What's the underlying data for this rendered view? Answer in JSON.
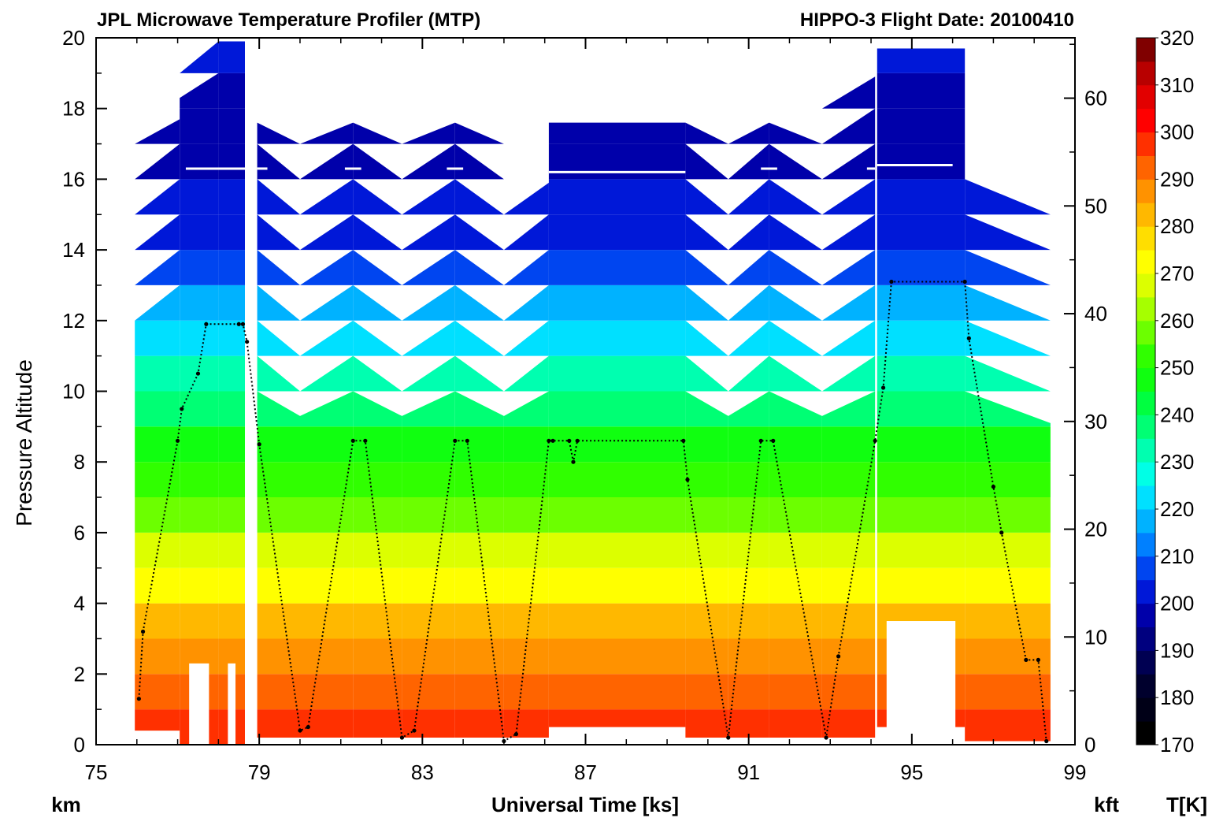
{
  "chart_data": {
    "type": "heatmap",
    "title_left": "JPL Microwave Temperature Profiler (MTP)",
    "title_right": "HIPPO-3  Flight Date: 20100410",
    "xlabel": "Universal Time [ks]",
    "ylabel": "Pressure Altitude",
    "left_unit": "km",
    "right_unit": "kft",
    "colorbar_unit": "T[K]",
    "xlim": [
      75,
      99
    ],
    "ylim_km": [
      0,
      20
    ],
    "ylim_kft": [
      0,
      65.6
    ],
    "x_ticks": [
      "75",
      "79",
      "83",
      "87",
      "91",
      "95",
      "99"
    ],
    "y_ticks_km": [
      "0",
      "2",
      "4",
      "6",
      "8",
      "10",
      "12",
      "14",
      "16",
      "18",
      "20"
    ],
    "y_ticks_kft": [
      "0",
      "10",
      "20",
      "30",
      "40",
      "50",
      "60"
    ],
    "colorbar_ticks": [
      "170",
      "180",
      "190",
      "200",
      "210",
      "220",
      "230",
      "240",
      "250",
      "260",
      "270",
      "280",
      "290",
      "300",
      "310",
      "320"
    ],
    "colormap": [
      {
        "t": 170,
        "color": "#000000"
      },
      {
        "t": 175,
        "color": "#000017"
      },
      {
        "t": 180,
        "color": "#00002d"
      },
      {
        "t": 185,
        "color": "#000052"
      },
      {
        "t": 190,
        "color": "#00007f"
      },
      {
        "t": 195,
        "color": "#0000aa"
      },
      {
        "t": 200,
        "color": "#0018d8"
      },
      {
        "t": 205,
        "color": "#0045f0"
      },
      {
        "t": 210,
        "color": "#0080ff"
      },
      {
        "t": 215,
        "color": "#00b2ff"
      },
      {
        "t": 220,
        "color": "#00e0ff"
      },
      {
        "t": 225,
        "color": "#00ffe6"
      },
      {
        "t": 230,
        "color": "#00ffb0"
      },
      {
        "t": 235,
        "color": "#00ff74"
      },
      {
        "t": 240,
        "color": "#00ff40"
      },
      {
        "t": 245,
        "color": "#10ff10"
      },
      {
        "t": 250,
        "color": "#30ff00"
      },
      {
        "t": 255,
        "color": "#6cff00"
      },
      {
        "t": 260,
        "color": "#a6ff00"
      },
      {
        "t": 265,
        "color": "#dcff00"
      },
      {
        "t": 270,
        "color": "#ffff00"
      },
      {
        "t": 275,
        "color": "#ffde00"
      },
      {
        "t": 280,
        "color": "#ffb800"
      },
      {
        "t": 285,
        "color": "#ff9200"
      },
      {
        "t": 290,
        "color": "#ff6400"
      },
      {
        "t": 295,
        "color": "#ff3000"
      },
      {
        "t": 300,
        "color": "#ff0000"
      },
      {
        "t": 305,
        "color": "#e20000"
      },
      {
        "t": 310,
        "color": "#b80000"
      },
      {
        "t": 315,
        "color": "#800000"
      },
      {
        "t": 320,
        "color": "#400000"
      }
    ],
    "curtain_segments": [
      {
        "x": [
          75.95,
          77.05
        ],
        "top_km": [
          12.0,
          17.7
        ],
        "bottom_km": 0.4
      },
      {
        "x": [
          77.05,
          78.0
        ],
        "top_km": [
          18.3,
          19.9
        ],
        "bottom_km": 0.0,
        "hole_top_km": 2.3
      },
      {
        "x": [
          78.0,
          78.65
        ],
        "top_km": [
          19.9,
          19.9
        ],
        "bottom_km": 0.0,
        "hole_top_km": 2.3
      },
      {
        "x": [
          78.95,
          80.0
        ],
        "top_km": [
          17.6,
          9.3
        ],
        "bottom_km": 0.2
      },
      {
        "x": [
          80.0,
          81.3
        ],
        "top_km": [
          9.3,
          17.6
        ],
        "bottom_km": 0.2
      },
      {
        "x": [
          81.3,
          82.5
        ],
        "top_km": [
          17.6,
          9.3
        ],
        "bottom_km": 0.2
      },
      {
        "x": [
          82.5,
          83.8
        ],
        "top_km": [
          9.3,
          17.6
        ],
        "bottom_km": 0.2
      },
      {
        "x": [
          83.8,
          85.0
        ],
        "top_km": [
          17.6,
          9.3
        ],
        "bottom_km": 0.2
      },
      {
        "x": [
          85.0,
          86.1
        ],
        "top_km": [
          9.3,
          15.9
        ],
        "bottom_km": 0.2
      },
      {
        "x": [
          86.1,
          89.45
        ],
        "top_km": [
          17.6,
          17.6
        ],
        "bottom_km": 0.5
      },
      {
        "x": [
          89.45,
          90.5
        ],
        "top_km": [
          17.6,
          9.3
        ],
        "bottom_km": 0.2
      },
      {
        "x": [
          90.5,
          91.5
        ],
        "top_km": [
          9.3,
          17.6
        ],
        "bottom_km": 0.2
      },
      {
        "x": [
          91.5,
          92.8
        ],
        "top_km": [
          17.6,
          9.3
        ],
        "bottom_km": 0.2
      },
      {
        "x": [
          92.8,
          94.1
        ],
        "top_km": [
          9.3,
          18.9
        ],
        "bottom_km": 0.2
      },
      {
        "x": [
          94.15,
          96.3
        ],
        "top_km": [
          19.7,
          19.7
        ],
        "bottom_km": 0.5,
        "hole_top_km": 3.5
      },
      {
        "x": [
          96.3,
          98.4
        ],
        "top_km": [
          16.0,
          9.1
        ],
        "bottom_km": 0.1
      }
    ],
    "temperature_profile": [
      {
        "km": 0.0,
        "t": 295
      },
      {
        "km": 1.0,
        "t": 292
      },
      {
        "km": 2.0,
        "t": 287
      },
      {
        "km": 3.0,
        "t": 281
      },
      {
        "km": 4.0,
        "t": 275
      },
      {
        "km": 5.0,
        "t": 268
      },
      {
        "km": 6.0,
        "t": 261
      },
      {
        "km": 7.0,
        "t": 254
      },
      {
        "km": 8.0,
        "t": 246
      },
      {
        "km": 9.0,
        "t": 240
      },
      {
        "km": 10.0,
        "t": 232
      },
      {
        "km": 11.0,
        "t": 224
      },
      {
        "km": 12.0,
        "t": 217
      },
      {
        "km": 13.0,
        "t": 210
      },
      {
        "km": 14.0,
        "t": 205
      },
      {
        "km": 15.0,
        "t": 200
      },
      {
        "km": 16.0,
        "t": 196
      },
      {
        "km": 17.0,
        "t": 194
      },
      {
        "km": 18.0,
        "t": 195
      },
      {
        "km": 19.0,
        "t": 197
      },
      {
        "km": 20.0,
        "t": 199
      }
    ],
    "tropopause_segments": [
      {
        "x": [
          77.2,
          78.65
        ],
        "km": 16.3
      },
      {
        "x": [
          78.95,
          79.2
        ],
        "km": 16.3
      },
      {
        "x": [
          81.1,
          81.5
        ],
        "km": 16.3
      },
      {
        "x": [
          83.6,
          84.0
        ],
        "km": 16.3
      },
      {
        "x": [
          86.1,
          89.45
        ],
        "km": 16.2
      },
      {
        "x": [
          91.3,
          91.7
        ],
        "km": 16.3
      },
      {
        "x": [
          93.9,
          94.1
        ],
        "km": 16.3
      },
      {
        "x": [
          94.15,
          96.0
        ],
        "km": 16.4
      }
    ],
    "aircraft_altitude": {
      "x": [
        76.05,
        76.15,
        77.0,
        77.1,
        77.5,
        77.7,
        78.5,
        78.6,
        78.7,
        79.0,
        80.0,
        80.2,
        81.3,
        81.6,
        82.5,
        82.8,
        83.8,
        84.1,
        85.0,
        85.3,
        86.1,
        86.2,
        86.6,
        86.7,
        86.8,
        89.4,
        89.5,
        90.5,
        91.3,
        91.6,
        92.9,
        93.2,
        94.1,
        94.3,
        94.5,
        96.3,
        96.4,
        97.0,
        97.2,
        97.8,
        98.1,
        98.3
      ],
      "km": [
        1.3,
        3.2,
        8.6,
        9.5,
        10.5,
        11.9,
        11.9,
        11.9,
        11.4,
        8.5,
        0.4,
        0.5,
        8.6,
        8.6,
        0.2,
        0.4,
        8.6,
        8.6,
        0.1,
        0.3,
        8.6,
        8.6,
        8.6,
        8.0,
        8.6,
        8.6,
        7.5,
        0.2,
        8.6,
        8.6,
        0.2,
        2.5,
        8.6,
        10.1,
        13.1,
        13.1,
        11.5,
        7.3,
        6.0,
        2.4,
        2.4,
        0.1
      ]
    }
  }
}
